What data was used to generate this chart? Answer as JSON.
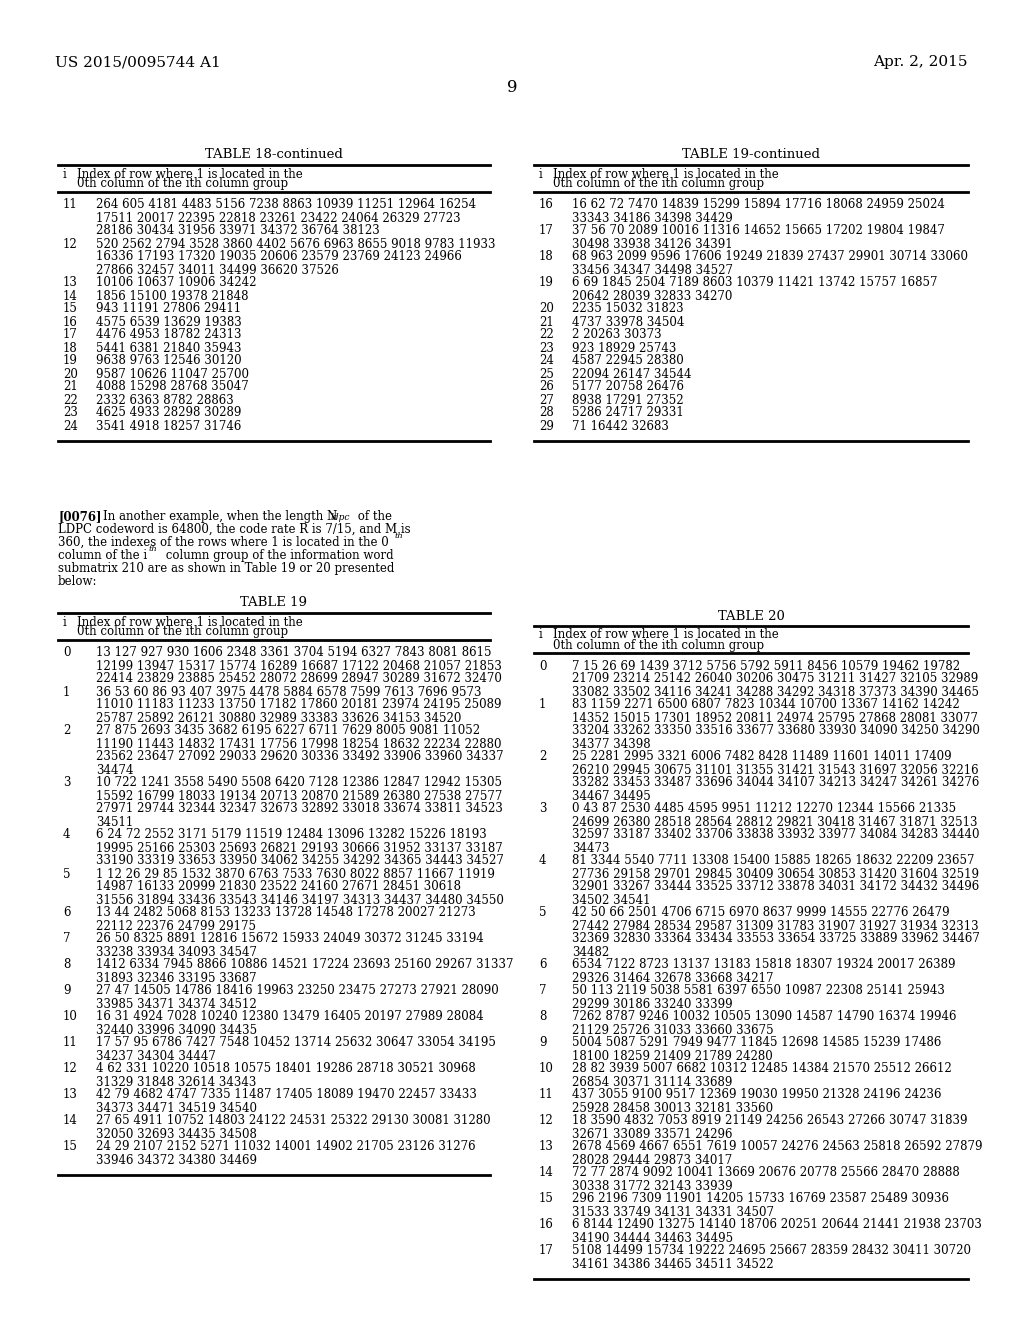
{
  "header_left": "US 2015/0095744 A1",
  "header_right": "Apr. 2, 2015",
  "page_number": "9",
  "bg_color": "#ffffff",
  "text_color": "#000000",
  "table18_title": "TABLE 18-continued",
  "table18_header1": "Index of row where 1 is located in the",
  "table18_header2": "0th column of the ith column group",
  "table18_rows": [
    [
      "11",
      "264 605 4181 4483 5156 7238 8863 10939 11251 12964 16254",
      "17511 20017 22395 22818 23261 23422 24064 26329 27723",
      "28186 30434 31956 33971 34372 36764 38123"
    ],
    [
      "12",
      "520 2562 2794 3528 3860 4402 5676 6963 8655 9018 9783 11933",
      "16336 17193 17320 19035 20606 23579 23769 24123 24966",
      "27866 32457 34011 34499 36620 37526"
    ],
    [
      "13",
      "10106 10637 10906 34242"
    ],
    [
      "14",
      "1856 15100 19378 21848"
    ],
    [
      "15",
      "943 11191 27806 29411"
    ],
    [
      "16",
      "4575 6539 13629 19383"
    ],
    [
      "17",
      "4476 4953 18782 24313"
    ],
    [
      "18",
      "5441 6381 21840 35943"
    ],
    [
      "19",
      "9638 9763 12546 30120"
    ],
    [
      "20",
      "9587 10626 11047 25700"
    ],
    [
      "21",
      "4088 15298 28768 35047"
    ],
    [
      "22",
      "2332 6363 8782 28863"
    ],
    [
      "23",
      "4625 4933 28298 30289"
    ],
    [
      "24",
      "3541 4918 18257 31746"
    ]
  ],
  "table19c_title": "TABLE 19-continued",
  "table19c_header1": "Index of row where 1 is located in the",
  "table19c_header2": "0th column of the ith column group",
  "table19c_rows": [
    [
      "16",
      "16 62 72 7470 14839 15299 15894 17716 18068 24959 25024",
      "33343 34186 34398 34429"
    ],
    [
      "17",
      "37 56 70 2089 10016 11316 14652 15665 17202 19804 19847",
      "30498 33938 34126 34391"
    ],
    [
      "18",
      "68 963 2099 9596 17606 19249 21839 27437 29901 30714 33060",
      "33456 34347 34498 34527"
    ],
    [
      "19",
      "6 69 1845 2504 7189 8603 10379 11421 13742 15757 16857",
      "20642 28039 32833 34270"
    ],
    [
      "20",
      "2235 15032 31823"
    ],
    [
      "21",
      "4737 33978 34504"
    ],
    [
      "22",
      "2 20263 30373"
    ],
    [
      "23",
      "923 18929 25743"
    ],
    [
      "24",
      "4587 22945 28380"
    ],
    [
      "25",
      "22094 26147 34544"
    ],
    [
      "26",
      "5177 20758 26476"
    ],
    [
      "27",
      "8938 17291 27352"
    ],
    [
      "28",
      "5286 24717 29331"
    ],
    [
      "29",
      "71 16442 32683"
    ]
  ],
  "para_bold": "[0076]",
  "para_text_lines": [
    "   In another example, when the length N",
    "LDPC codeword is 64800, the code rate R is 7/15, and M is",
    "360, the indexes of the rows where 1 is located in the 0",
    "column of the i",
    "submatrix 210 are as shown in Table 19 or 20 presented",
    "below:"
  ],
  "para_subscript": "ldpc",
  "para_sup1": "th",
  "para_sup2": "th",
  "table19_title": "TABLE 19",
  "table19_header1": "Index of row where 1 is located in the",
  "table19_header2": "0th column of the ith column group",
  "table19_rows": [
    [
      "0",
      "13 127 927 930 1606 2348 3361 3704 5194 6327 7843 8081 8615",
      "12199 13947 15317 15774 16289 16687 17122 20468 21057 21853",
      "22414 23829 23885 25452 28072 28699 28947 30289 31672 32470"
    ],
    [
      "1",
      "36 53 60 86 93 407 3975 4478 5884 6578 7599 7613 7696 9573",
      "11010 11183 11233 13750 17182 17860 20181 23974 24195 25089",
      "25787 25892 26121 30880 32989 33383 33626 34153 34520"
    ],
    [
      "2",
      "27 875 2693 3435 3682 6195 6227 6711 7629 8005 9081 11052",
      "11190 11443 14832 17431 17756 17998 18254 18632 22234 22880",
      "23562 23647 27092 29033 29620 30336 33492 33906 33960 34337",
      "34474"
    ],
    [
      "3",
      "10 722 1241 3558 5490 5508 6420 7128 12386 12847 12942 15305",
      "15592 16799 18033 19134 20713 20870 21589 26380 27538 27577",
      "27971 29744 32344 32347 32673 32892 33018 33674 33811 34523",
      "34511"
    ],
    [
      "4",
      "6 24 72 2552 3171 5179 11519 12484 13096 13282 15226 18193",
      "19995 25166 25303 25693 26821 29193 30666 31952 33137 33187",
      "33190 33319 33653 33950 34062 34255 34292 34365 34443 34527"
    ],
    [
      "5",
      "1 12 26 29 85 1532 3870 6763 7533 7630 8022 8857 11667 11919",
      "14987 16133 20999 21830 23522 24160 27671 28451 30618",
      "31556 31894 33436 33543 34146 34197 34313 34437 34480 34550"
    ],
    [
      "6",
      "13 44 2482 5068 8153 13233 13728 14548 17278 20027 21273",
      "22112 22376 24799 29175"
    ],
    [
      "7",
      "26 50 8325 8891 12816 15672 15933 24049 30372 31245 33194",
      "33238 33934 34093 34547"
    ],
    [
      "8",
      "1412 6334 7945 8866 10886 14521 17224 23693 25160 29267 31337",
      "31893 32346 33195 33687"
    ],
    [
      "9",
      "27 47 14505 14786 18416 19963 23250 23475 27273 27921 28090",
      "33985 34371 34374 34512"
    ],
    [
      "10",
      "16 31 4924 7028 10240 12380 13479 16405 20197 27989 28084",
      "32440 33996 34090 34435"
    ],
    [
      "11",
      "17 57 95 6786 7427 7548 10452 13714 25632 30647 33054 34195",
      "34237 34304 34447"
    ],
    [
      "12",
      "4 62 331 10220 10518 10575 18401 19286 28718 30521 30968",
      "31329 31848 32614 34343"
    ],
    [
      "13",
      "42 79 4682 4747 7335 11487 17405 18089 19470 22457 33433",
      "34373 34471 34519 34540"
    ],
    [
      "14",
      "27 65 4911 10752 14803 24122 24531 25322 29130 30081 31280",
      "32050 32693 34435 34508"
    ],
    [
      "15",
      "24 29 2107 2152 5271 11032 14001 14902 21705 23126 31276",
      "33946 34372 34380 34469"
    ]
  ],
  "table20_title": "TABLE 20",
  "table20_header1": "Index of row where 1 is located in the",
  "table20_header2": "0th column of the ith column group",
  "table20_rows": [
    [
      "0",
      "7 15 26 69 1439 3712 5756 5792 5911 8456 10579 19462 19782",
      "21709 23214 25142 26040 30206 30475 31211 31427 32105 32989",
      "33082 33502 34116 34241 34288 34292 34318 37373 34390 34465"
    ],
    [
      "1",
      "83 1159 2271 6500 6807 7823 10344 10700 13367 14162 14242",
      "14352 15015 17301 18952 20811 24974 25795 27868 28081 33077",
      "33204 33262 33350 33516 33677 33680 33930 34090 34250 34290",
      "34377 34398"
    ],
    [
      "2",
      "25 2281 2995 3321 6006 7482 8428 11489 11601 14011 17409",
      "26210 29945 30675 31101 31355 31421 31543 31697 32056 32216",
      "33282 33453 33487 33696 34044 34107 34213 34247 34261 34276",
      "34467 34495"
    ],
    [
      "3",
      "0 43 87 2530 4485 4595 9951 11212 12270 12344 15566 21335",
      "24699 26380 28518 28564 28812 29821 30418 31467 31871 32513",
      "32597 33187 33402 33706 33838 33932 33977 34084 34283 34440",
      "34473"
    ],
    [
      "4",
      "81 3344 5540 7711 13308 15400 15885 18265 18632 22209 23657",
      "27736 29158 29701 29845 30409 30654 30853 31420 31604 32519",
      "32901 33267 33444 33525 33712 33878 34031 34172 34432 34496",
      "34502 34541"
    ],
    [
      "5",
      "42 50 66 2501 4706 6715 6970 8637 9999 14555 22776 26479",
      "27442 27984 28534 29587 31309 31783 31907 31927 31934 32313",
      "32369 32830 33364 33434 33553 33654 33725 33889 33962 34467",
      "34482"
    ],
    [
      "6",
      "6534 7122 8723 13137 13183 15818 18307 19324 20017 26389",
      "29326 31464 32678 33668 34217"
    ],
    [
      "7",
      "50 113 2119 5038 5581 6397 6550 10987 22308 25141 25943",
      "29299 30186 33240 33399"
    ],
    [
      "8",
      "7262 8787 9246 10032 10505 13090 14587 14790 16374 19946",
      "21129 25726 31033 33660 33675"
    ],
    [
      "9",
      "5004 5087 5291 7949 9477 11845 12698 14585 15239 17486",
      "18100 18259 21409 21789 24280"
    ],
    [
      "10",
      "28 82 3939 5007 6682 10312 12485 14384 21570 25512 26612",
      "26854 30371 31114 33689"
    ],
    [
      "11",
      "437 3055 9100 9517 12369 19030 19950 21328 24196 24236",
      "25928 28458 30013 32181 33560"
    ],
    [
      "12",
      "18 3590 4832 7053 8919 21149 24256 26543 27266 30747 31839",
      "32671 33089 33571 24296"
    ],
    [
      "13",
      "2678 4569 4667 6551 7619 10057 24276 24563 25818 26592 27879",
      "28028 29444 29873 34017"
    ],
    [
      "14",
      "72 77 2874 9092 10041 13669 20676 20778 25566 28470 28888",
      "30338 31772 32143 33939"
    ],
    [
      "15",
      "296 2196 7309 11901 14205 15733 16769 23587 25489 30936",
      "31533 33749 34131 34331 34507"
    ],
    [
      "16",
      "6 8144 12490 13275 14140 18706 20251 20644 21441 21938 23703",
      "34190 34444 34463 34495"
    ],
    [
      "17",
      "5108 14499 15734 19222 24695 25667 28359 28432 30411 30720",
      "34161 34386 34465 34511 34522"
    ]
  ]
}
